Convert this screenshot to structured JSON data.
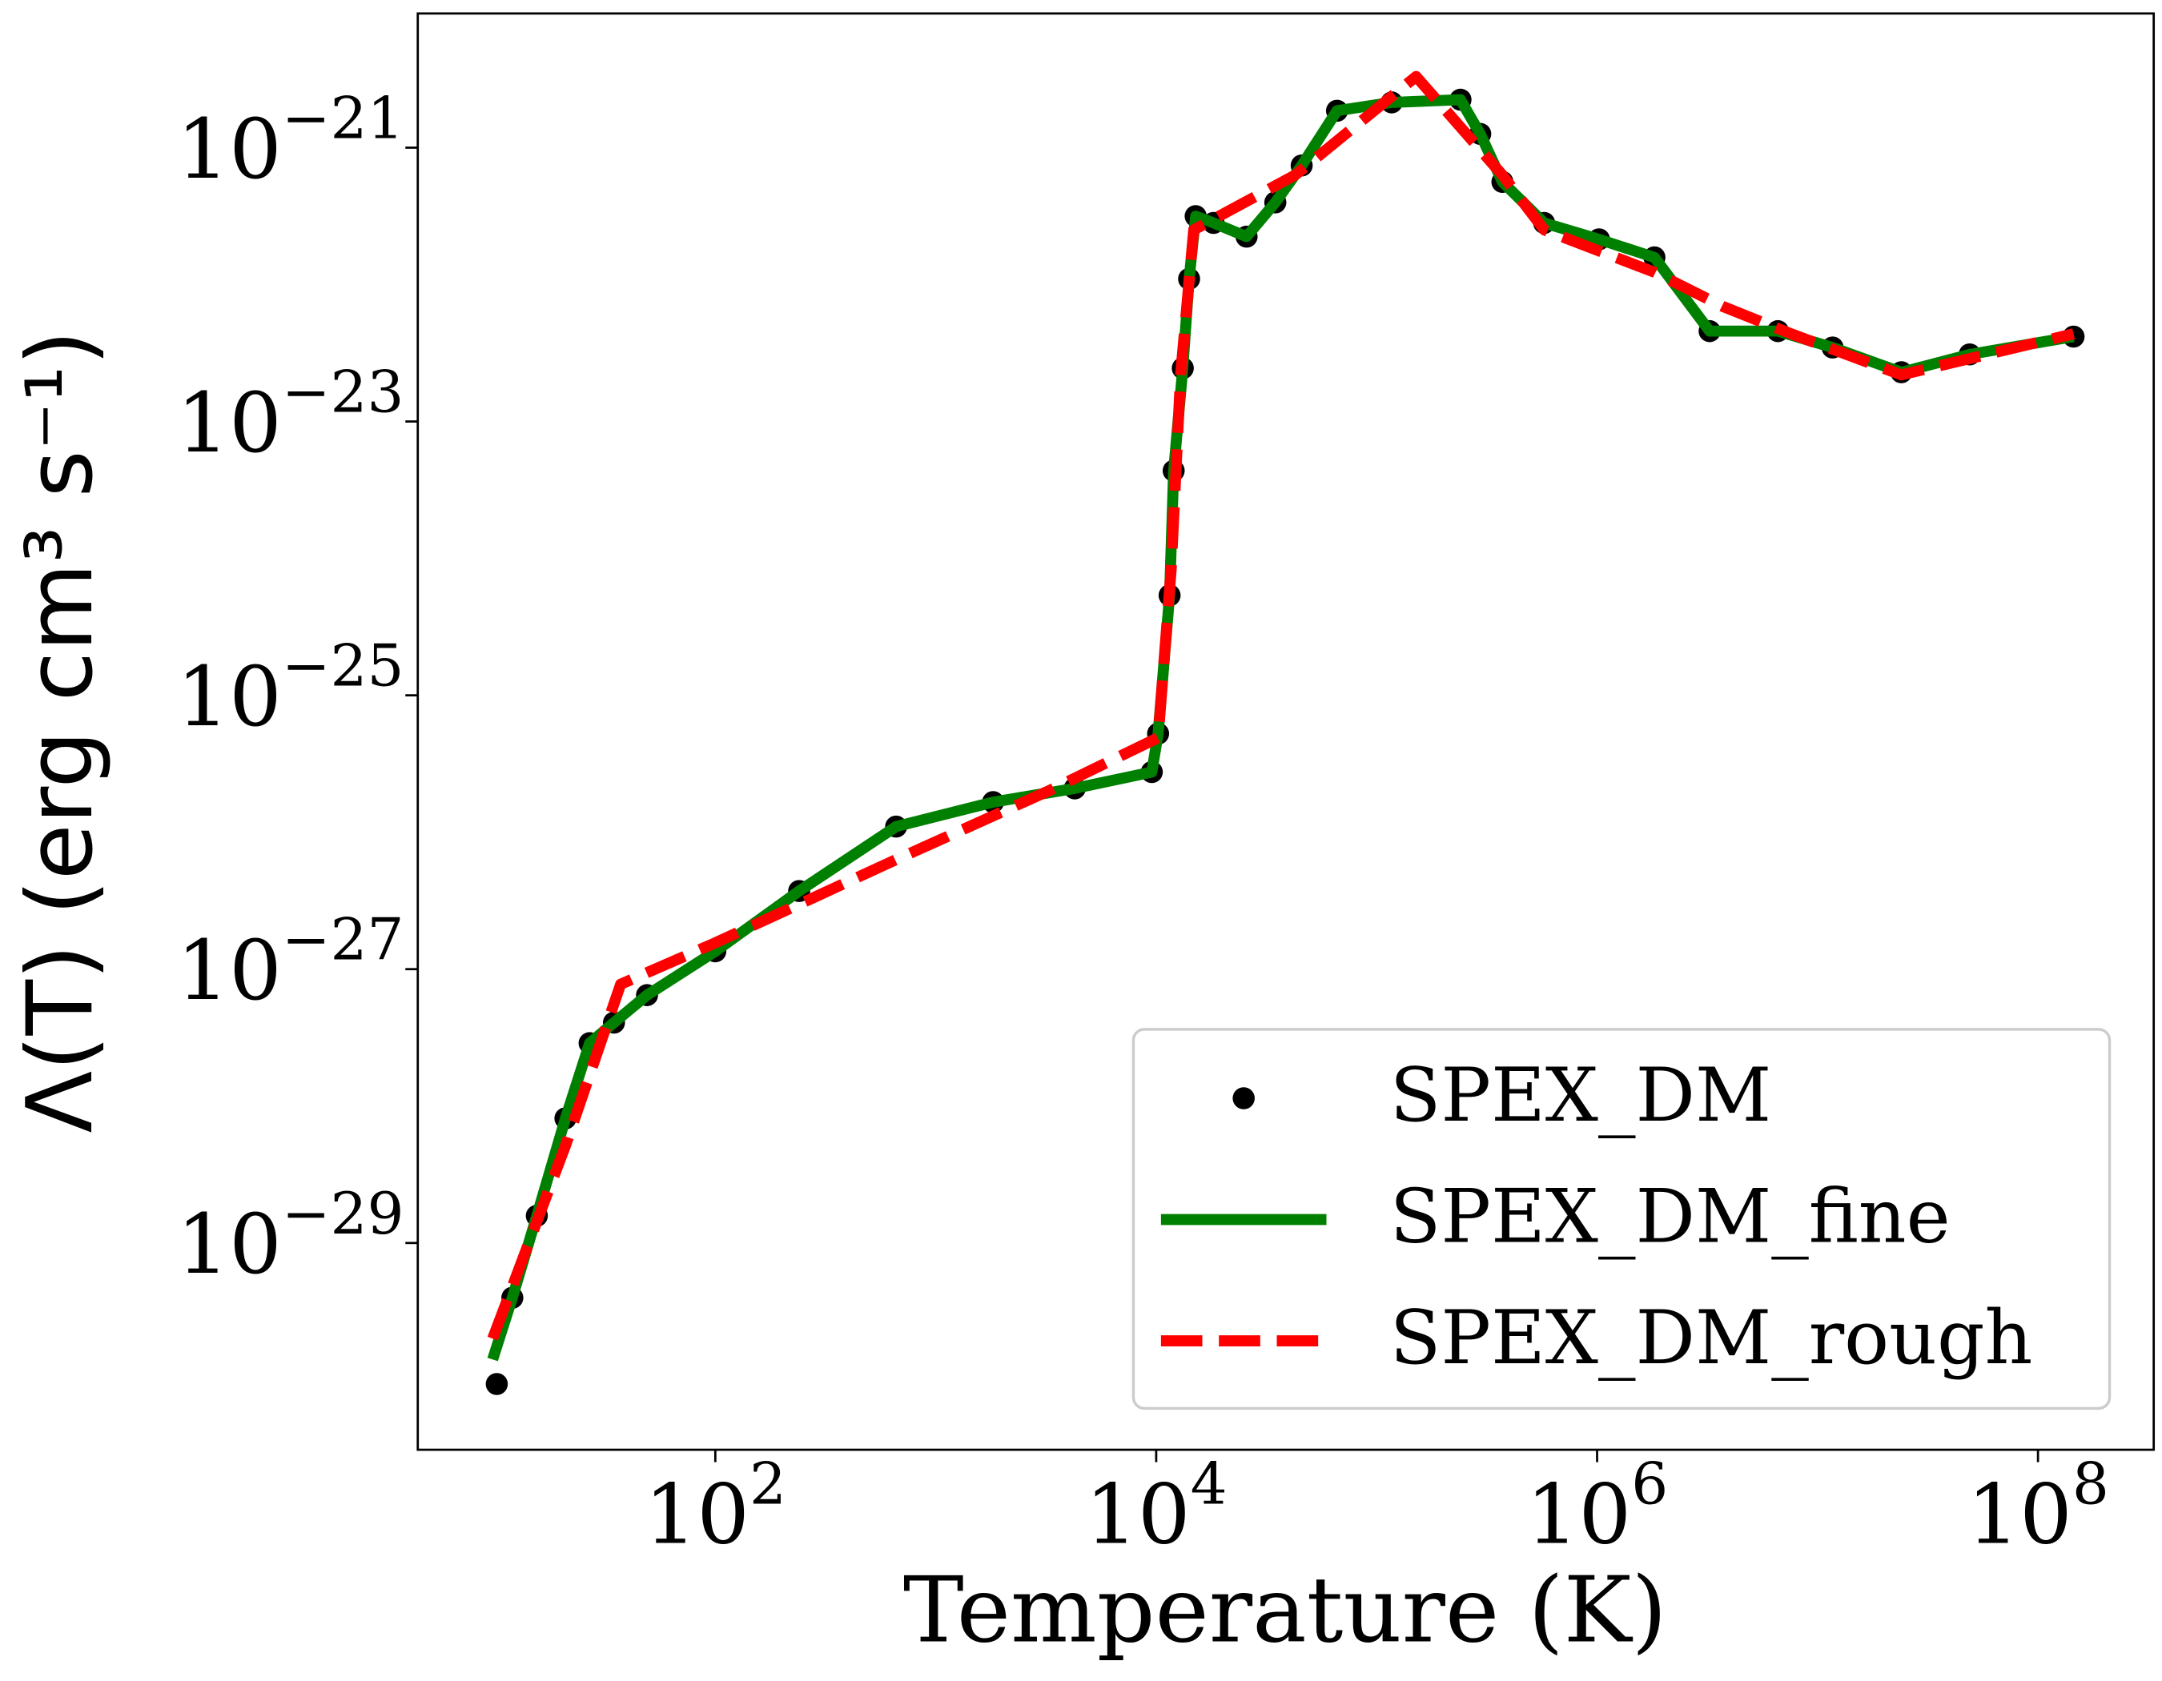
{
  "chart_data": {
    "type": "line",
    "xlabel": "Temperature (K)",
    "ylabel": "Λ(T) (erg cm³ s⁻¹)",
    "xscale": "log",
    "yscale": "log",
    "xlim": [
      4.47,
      335000000
    ],
    "ylim": [
      3.09e-31,
      9.55e-21
    ],
    "xticks": [
      {
        "value": 100,
        "label": "102"
      },
      {
        "value": 10000,
        "label": "104"
      },
      {
        "value": 1000000,
        "label": "106"
      },
      {
        "value": 100000000,
        "label": "108"
      }
    ],
    "yticks": [
      {
        "value": 1e-29,
        "label": "10−29"
      },
      {
        "value": 1e-27,
        "label": "10−27"
      },
      {
        "value": 1e-25,
        "label": "10−25"
      },
      {
        "value": 1e-23,
        "label": "10−23"
      },
      {
        "value": 1e-21,
        "label": "10−21"
      }
    ],
    "legend": "lower right",
    "series": [
      {
        "name": "SPEX_DM",
        "color": "#000000",
        "style": "dots",
        "x": [
          10.2,
          12.0,
          15.5,
          20.9,
          26.9,
          34.7,
          49.0,
          100,
          240,
          661,
          1820,
          4270,
          9550,
          10200,
          11500,
          12000,
          13200,
          14100,
          15100,
          18200,
          25700,
          34700,
          45700,
          66100,
          117000,
          240000,
          295000,
          372000,
          575000,
          1020000,
          1820000,
          3240000,
          6610000,
          11700000,
          24000000,
          49000000,
          145000000
        ],
        "values": [
          9.33e-31,
          3.98e-30,
          1.58e-29,
          8.13e-29,
          2.88e-28,
          4.07e-28,
          6.46e-28,
          1.35e-27,
          3.72e-27,
          1.1e-26,
          1.66e-26,
          2.09e-26,
          2.75e-26,
          5.25e-26,
          5.37e-25,
          4.37e-24,
          2.45e-23,
          1.1e-22,
          3.16e-22,
          2.82e-22,
          2.24e-22,
          3.98e-22,
          7.41e-22,
          1.86e-21,
          2.14e-21,
          2.24e-21,
          1.26e-21,
          5.62e-22,
          2.82e-22,
          2.14e-22,
          1.58e-22,
          4.57e-23,
          4.57e-23,
          3.47e-23,
          2.29e-23,
          3.09e-23,
          4.17e-23
        ]
      },
      {
        "name": "SPEX_DM_fine",
        "color": "#008000",
        "style": "solid",
        "x": [
          9.77,
          12.0,
          15.5,
          20.9,
          26.9,
          34.7,
          49.0,
          100,
          240,
          661,
          1820,
          4270,
          9550,
          10200,
          11500,
          12000,
          13200,
          14100,
          15100,
          18200,
          25700,
          34700,
          45700,
          66100,
          117000,
          240000,
          295000,
          372000,
          575000,
          1020000,
          1820000,
          3240000,
          6610000,
          11700000,
          24000000,
          49000000,
          145000000
        ],
        "values": [
          1.41e-30,
          3.98e-30,
          1.58e-29,
          8.13e-29,
          2.88e-28,
          4.07e-28,
          6.46e-28,
          1.35e-27,
          3.72e-27,
          1.1e-26,
          1.66e-26,
          2.09e-26,
          2.75e-26,
          5.25e-26,
          5.37e-25,
          4.37e-24,
          2.45e-23,
          1.1e-22,
          3.16e-22,
          2.82e-22,
          2.24e-22,
          3.98e-22,
          7.41e-22,
          1.86e-21,
          2.14e-21,
          2.24e-21,
          1.26e-21,
          5.62e-22,
          2.82e-22,
          2.14e-22,
          1.58e-22,
          4.57e-23,
          4.57e-23,
          3.47e-23,
          2.29e-23,
          3.09e-23,
          4.17e-23
        ]
      },
      {
        "name": "SPEX_DM_rough",
        "color": "#ff0000",
        "style": "dashed",
        "x": [
          9.77,
          20.9,
          37.2,
          102,
          661,
          3240,
          10200,
          11700,
          12900,
          14800,
          42700,
          151000,
          372000,
          575000,
          1820000,
          3720000,
          7590000,
          24000000,
          145000000
        ],
        "values": [
          2e-30,
          5.13e-29,
          7.76e-28,
          1.58e-27,
          6.31e-27,
          2e-26,
          4.9e-26,
          8.51e-25,
          2.19e-23,
          2.51e-22,
          6.31e-22,
          3.31e-21,
          6.31e-22,
          2.51e-22,
          1.23e-22,
          6.92e-23,
          4.37e-23,
          2.19e-23,
          4.37e-23
        ]
      }
    ]
  }
}
